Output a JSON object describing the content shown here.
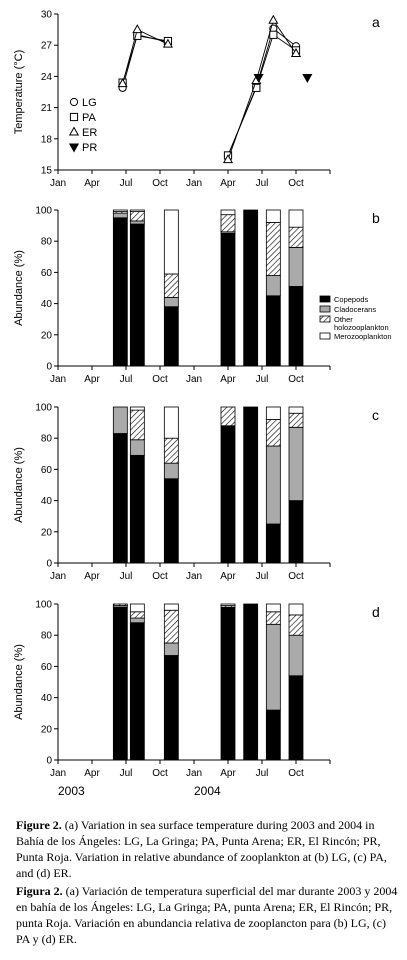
{
  "months": [
    "Jan",
    "Apr",
    "Jul",
    "Oct",
    "Jan",
    "Apr",
    "Jul",
    "Oct"
  ],
  "years": [
    "2003",
    "2004"
  ],
  "colors": {
    "copepods": "#000000",
    "cladocerans": "#aaaaaa",
    "other": "hatch",
    "mero": "#ffffff"
  },
  "chart_data": [
    {
      "type": "line",
      "panel_letter": "a",
      "ylabel": "Temperature (°C)",
      "ylim": [
        15,
        30
      ],
      "yticks": [
        15,
        18,
        21,
        24,
        27,
        30
      ],
      "x_unit": "month index (0 = Jan 2003)",
      "legend": [
        "LG",
        "PA",
        "ER",
        "PR"
      ],
      "series": [
        {
          "name": "LG",
          "marker": "circle",
          "points": [
            [
              5.7,
              22.9
            ],
            [
              7.0,
              28.0
            ],
            [
              9.7,
              27.3
            ],
            [
              15.0,
              16.4
            ],
            [
              17.5,
              23.0
            ],
            [
              19.0,
              28.6
            ],
            [
              21.0,
              26.9
            ]
          ]
        },
        {
          "name": "PA",
          "marker": "square",
          "points": [
            [
              5.7,
              23.4
            ],
            [
              7.0,
              27.9
            ],
            [
              9.7,
              27.4
            ],
            [
              15.0,
              16.4
            ],
            [
              17.5,
              22.9
            ],
            [
              19.0,
              28.0
            ],
            [
              21.0,
              26.5
            ]
          ]
        },
        {
          "name": "ER",
          "marker": "triangle",
          "points": [
            [
              5.7,
              23.3
            ],
            [
              7.0,
              28.5
            ],
            [
              9.7,
              27.1
            ],
            [
              15.0,
              16.0
            ],
            [
              17.5,
              23.6
            ],
            [
              19.0,
              29.4
            ],
            [
              21.0,
              26.2
            ]
          ]
        },
        {
          "name": "PR",
          "marker": "triangle-down",
          "points": [
            [
              17.7,
              23.9
            ],
            [
              22.0,
              23.9
            ]
          ]
        }
      ]
    },
    {
      "type": "bar",
      "panel_letter": "b",
      "ylabel": "Abundance (%)",
      "ylim": [
        0,
        100
      ],
      "yticks": [
        0,
        20,
        40,
        60,
        80,
        100
      ],
      "legend": [
        "Copepods",
        "Cladocerans",
        "Other holozooplankton",
        "Merozooplankton"
      ],
      "bars": [
        {
          "x": 5.5,
          "copepods": 95,
          "cladocerans": 3,
          "other": 1,
          "mero": 1
        },
        {
          "x": 7.0,
          "copepods": 91,
          "cladocerans": 2,
          "other": 6,
          "mero": 1
        },
        {
          "x": 10.0,
          "copepods": 38,
          "cladocerans": 6,
          "other": 15,
          "mero": 41
        },
        {
          "x": 15.0,
          "copepods": 85,
          "cladocerans": 1,
          "other": 11,
          "mero": 3
        },
        {
          "x": 17.0,
          "copepods": 100,
          "cladocerans": 0,
          "other": 0,
          "mero": 0
        },
        {
          "x": 19.0,
          "copepods": 45,
          "cladocerans": 13,
          "other": 34,
          "mero": 8
        },
        {
          "x": 21.0,
          "copepods": 51,
          "cladocerans": 25,
          "other": 13,
          "mero": 11
        }
      ]
    },
    {
      "type": "bar",
      "panel_letter": "c",
      "ylabel": "Abundance (%)",
      "ylim": [
        0,
        100
      ],
      "yticks": [
        0,
        20,
        40,
        60,
        80,
        100
      ],
      "bars": [
        {
          "x": 5.5,
          "copepods": 83,
          "cladocerans": 17,
          "other": 0,
          "mero": 0
        },
        {
          "x": 7.0,
          "copepods": 69,
          "cladocerans": 10,
          "other": 19,
          "mero": 2
        },
        {
          "x": 10.0,
          "copepods": 54,
          "cladocerans": 10,
          "other": 16,
          "mero": 20
        },
        {
          "x": 15.0,
          "copepods": 88,
          "cladocerans": 0,
          "other": 12,
          "mero": 0
        },
        {
          "x": 17.0,
          "copepods": 100,
          "cladocerans": 0,
          "other": 0,
          "mero": 0
        },
        {
          "x": 19.0,
          "copepods": 25,
          "cladocerans": 50,
          "other": 17,
          "mero": 8
        },
        {
          "x": 21.0,
          "copepods": 40,
          "cladocerans": 47,
          "other": 9,
          "mero": 4
        }
      ]
    },
    {
      "type": "bar",
      "panel_letter": "d",
      "ylabel": "Abundance (%)",
      "ylim": [
        0,
        100
      ],
      "yticks": [
        0,
        20,
        40,
        60,
        80,
        100
      ],
      "bars": [
        {
          "x": 5.5,
          "copepods": 98,
          "cladocerans": 1,
          "other": 1,
          "mero": 0
        },
        {
          "x": 7.0,
          "copepods": 88,
          "cladocerans": 3,
          "other": 4,
          "mero": 5
        },
        {
          "x": 10.0,
          "copepods": 67,
          "cladocerans": 8,
          "other": 21,
          "mero": 4
        },
        {
          "x": 15.0,
          "copepods": 98,
          "cladocerans": 0,
          "other": 1,
          "mero": 1
        },
        {
          "x": 17.0,
          "copepods": 100,
          "cladocerans": 0,
          "other": 0,
          "mero": 0
        },
        {
          "x": 19.0,
          "copepods": 32,
          "cladocerans": 55,
          "other": 8,
          "mero": 5
        },
        {
          "x": 21.0,
          "copepods": 54,
          "cladocerans": 26,
          "other": 13,
          "mero": 7
        }
      ]
    }
  ],
  "caption_en_label": "Figure 2.",
  "caption_en": " (a) Variation in sea surface temperature during 2003 and 2004 in Bahía de los Ángeles: LG, La Gringa; PA, Punta Arena; ER, El Rincón; PR, Punta Roja. Variation in relative abundance of zooplankton at (b) LG, (c) PA, and (d) ER.",
  "caption_es_label": "Figura 2.",
  "caption_es": " (a) Variación de temperatura superficial del mar durante 2003 y 2004 en bahía de los Ángeles: LG, La Gringa; PA, punta Arena; ER, El Rincón; PR, punta Roja. Variación en abundancia relativa de zooplancton para (b) LG, (c) PA y (d) ER."
}
